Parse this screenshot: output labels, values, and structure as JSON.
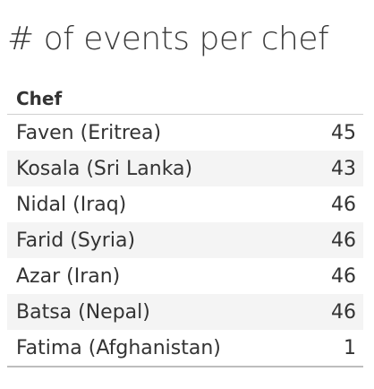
{
  "chart_data": {
    "type": "table",
    "title": "# of events per chef",
    "columns": [
      "Chef",
      ""
    ],
    "rows": [
      {
        "chef": "Faven (Eritrea)",
        "events": 45
      },
      {
        "chef": "Kosala (Sri Lanka)",
        "events": 43
      },
      {
        "chef": "Nidal (Iraq)",
        "events": 46
      },
      {
        "chef": "Farid (Syria)",
        "events": 46
      },
      {
        "chef": "Azar (Iran)",
        "events": 46
      },
      {
        "chef": "Batsa (Nepal)",
        "events": 46
      },
      {
        "chef": "Fatima (Afghanistan)",
        "events": 1
      }
    ]
  }
}
